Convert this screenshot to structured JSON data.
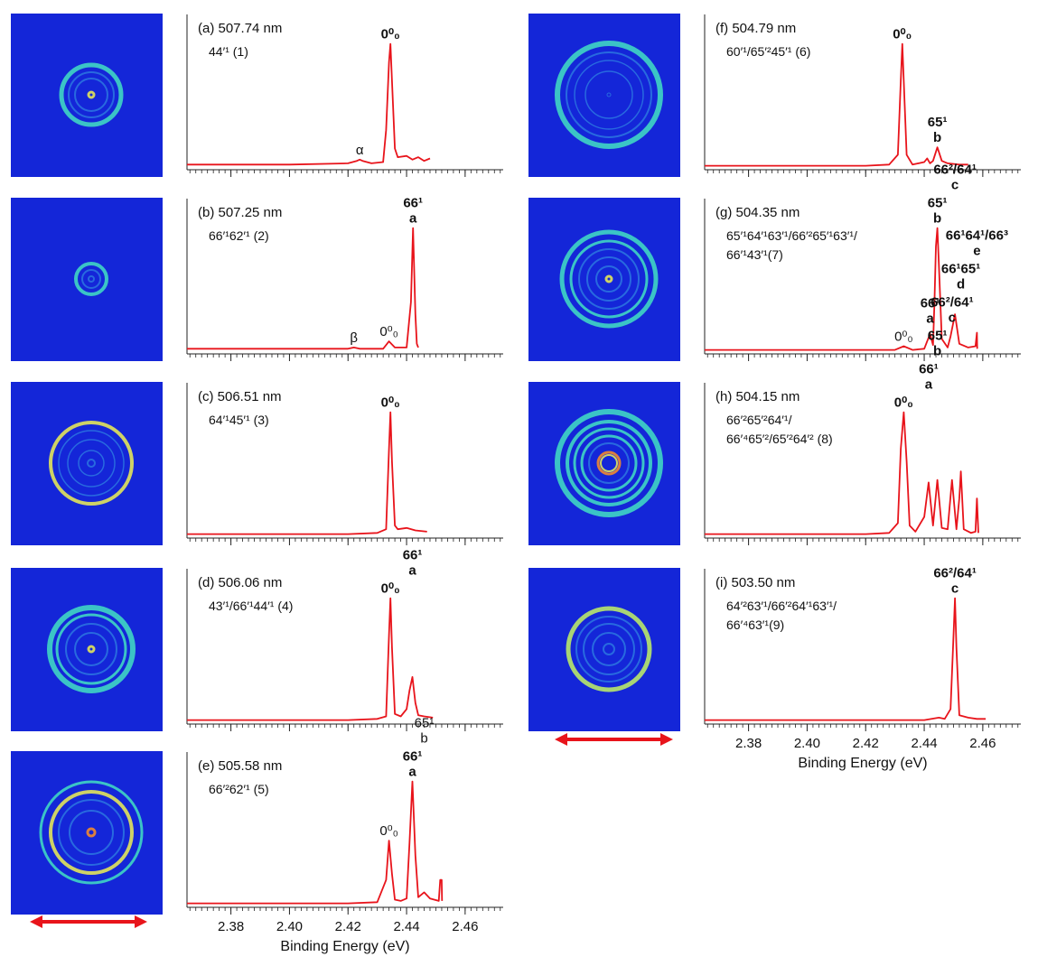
{
  "chart_data": [
    {
      "type": "line",
      "title": "(a) 507.74 nm",
      "assignment": [
        "44′¹ (1)"
      ],
      "color": "#e8141b",
      "xlim": [
        2.365,
        2.473
      ],
      "ylim": [
        0,
        110
      ],
      "xticks": [
        2.38,
        2.4,
        2.42,
        2.44,
        2.46
      ],
      "tick_labels": false,
      "x": [
        2.365,
        2.4,
        2.42,
        2.423,
        2.424,
        2.425,
        2.428,
        2.432,
        2.433,
        2.434,
        2.4345,
        2.435,
        2.436,
        2.437,
        2.44,
        2.442,
        2.444,
        2.446,
        2.448
      ],
      "values": [
        2,
        2,
        3,
        5,
        6,
        5,
        3,
        4,
        30,
        85,
        100,
        70,
        15,
        8,
        9,
        6,
        8,
        5,
        7
      ],
      "annotations": [
        {
          "x": 2.424,
          "label": "α",
          "bold": false
        },
        {
          "x": 2.4345,
          "label": "0⁰₀",
          "bold": true
        }
      ]
    },
    {
      "type": "line",
      "title": "(b) 507.25 nm",
      "assignment": [
        "66′¹62′¹ (2)"
      ],
      "color": "#e8141b",
      "xlim": [
        2.365,
        2.473
      ],
      "ylim": [
        0,
        110
      ],
      "xticks": [
        2.38,
        2.4,
        2.42,
        2.44,
        2.46
      ],
      "tick_labels": false,
      "x": [
        2.365,
        2.4,
        2.42,
        2.422,
        2.424,
        2.432,
        2.434,
        2.436,
        2.44,
        2.4415,
        2.4422,
        2.443,
        2.4435,
        2.444
      ],
      "values": [
        2,
        2,
        2,
        3,
        2,
        2,
        8,
        3,
        3,
        40,
        100,
        30,
        6,
        3
      ],
      "annotations": [
        {
          "x": 2.422,
          "label": "β",
          "bold": false
        },
        {
          "x": 2.434,
          "label": "0⁰₀",
          "bold": false
        },
        {
          "x": 2.4422,
          "label": "66¹",
          "letter": "a",
          "bold": true
        }
      ]
    },
    {
      "type": "line",
      "title": "(c) 506.51 nm",
      "assignment": [
        "64′¹45′¹ (3)"
      ],
      "color": "#e8141b",
      "xlim": [
        2.365,
        2.473
      ],
      "ylim": [
        0,
        110
      ],
      "xticks": [
        2.38,
        2.4,
        2.42,
        2.44,
        2.46
      ],
      "tick_labels": false,
      "x": [
        2.365,
        2.42,
        2.43,
        2.433,
        2.434,
        2.4345,
        2.435,
        2.436,
        2.437,
        2.44,
        2.443,
        2.447
      ],
      "values": [
        1,
        1,
        2,
        5,
        70,
        100,
        60,
        8,
        5,
        6,
        4,
        3
      ],
      "annotations": [
        {
          "x": 2.4345,
          "label": "0⁰₀",
          "bold": true
        }
      ]
    },
    {
      "type": "line",
      "title": "(d) 506.06 nm",
      "assignment": [
        "43′¹/66′¹44′¹ (4)"
      ],
      "color": "#e8141b",
      "xlim": [
        2.365,
        2.473
      ],
      "ylim": [
        0,
        110
      ],
      "xticks": [
        2.38,
        2.4,
        2.42,
        2.44,
        2.46
      ],
      "tick_labels": false,
      "x": [
        2.365,
        2.42,
        2.43,
        2.433,
        2.434,
        2.4345,
        2.435,
        2.436,
        2.438,
        2.44,
        2.441,
        2.442,
        2.443,
        2.444,
        2.446,
        2.449
      ],
      "values": [
        1,
        1,
        2,
        4,
        70,
        100,
        60,
        6,
        4,
        10,
        25,
        36,
        15,
        5,
        4,
        3
      ],
      "annotations": [
        {
          "x": 2.4345,
          "label": "0⁰₀",
          "bold": true
        },
        {
          "x": 2.442,
          "label": "66¹",
          "letter": "a",
          "bold": true
        }
      ]
    },
    {
      "type": "line",
      "title": "(e) 505.58 nm",
      "assignment": [
        "66′²62′¹ (5)"
      ],
      "color": "#e8141b",
      "xlim": [
        2.365,
        2.473
      ],
      "ylim": [
        0,
        110
      ],
      "xticks": [
        2.38,
        {
          "value": 2.4,
          "label": "2.40"
        },
        2.42,
        2.44,
        2.46
      ],
      "xlabel": "Binding Energy (eV)",
      "x": [
        2.365,
        2.42,
        2.43,
        2.433,
        2.434,
        2.435,
        2.436,
        2.438,
        2.44,
        2.441,
        2.442,
        2.443,
        2.444,
        2.445,
        2.446,
        2.448,
        2.451,
        2.4515,
        2.452,
        2.4521
      ],
      "values": [
        1,
        1,
        2,
        20,
        52,
        25,
        4,
        3,
        5,
        50,
        100,
        40,
        6,
        8,
        10,
        5,
        3,
        20,
        20,
        3
      ],
      "annotations": [
        {
          "x": 2.434,
          "label": "0⁰₀",
          "bold": false
        },
        {
          "x": 2.442,
          "label": "66¹",
          "letter": "a",
          "bold": true
        },
        {
          "x": 2.446,
          "label": "65¹",
          "letter": "b",
          "bold": false
        }
      ]
    },
    {
      "type": "line",
      "title": "(f) 504.79 nm",
      "assignment": [
        "60′¹/65′²45′¹ (6)"
      ],
      "color": "#e8141b",
      "xlim": [
        2.365,
        2.473
      ],
      "ylim": [
        0,
        110
      ],
      "xticks": [
        2.38,
        2.4,
        2.42,
        2.44,
        2.46
      ],
      "tick_labels": false,
      "x": [
        2.365,
        2.42,
        2.428,
        2.431,
        2.432,
        2.4325,
        2.433,
        2.434,
        2.436,
        2.44,
        2.441,
        2.442,
        2.443,
        2.4445,
        2.446,
        2.448,
        2.452,
        2.455
      ],
      "values": [
        1,
        1,
        2,
        10,
        70,
        100,
        70,
        10,
        2,
        4,
        7,
        3,
        5,
        16,
        5,
        3,
        2,
        2
      ],
      "annotations": [
        {
          "x": 2.4325,
          "label": "0⁰₀",
          "bold": true
        },
        {
          "x": 2.4445,
          "label": "65¹",
          "letter": "b",
          "bold": true
        }
      ]
    },
    {
      "type": "line",
      "title": "(g) 504.35 nm",
      "assignment": [
        "65′¹64′¹63′¹/66′²65′¹63′¹/",
        "66′¹43′¹(7)"
      ],
      "color": "#e8141b",
      "xlim": [
        2.365,
        2.473
      ],
      "ylim": [
        0,
        110
      ],
      "xticks": [
        2.38,
        2.4,
        2.42,
        2.44,
        2.46
      ],
      "tick_labels": false,
      "x": [
        2.365,
        2.43,
        2.433,
        2.436,
        2.44,
        2.441,
        2.442,
        2.443,
        2.4435,
        2.444,
        2.4445,
        2.445,
        2.446,
        2.448,
        2.449,
        2.4505,
        2.452,
        2.455,
        2.4575,
        2.458,
        2.4581
      ],
      "values": [
        1,
        1,
        4,
        1,
        2,
        8,
        14,
        5,
        40,
        85,
        100,
        70,
        10,
        3,
        12,
        30,
        6,
        3,
        4,
        15,
        2
      ],
      "annotations": [
        {
          "x": 2.433,
          "label": "0⁰₀",
          "bold": false
        },
        {
          "x": 2.442,
          "label": "66¹",
          "letter": "a",
          "bold": true
        },
        {
          "x": 2.4445,
          "label": "65¹",
          "letter": "b",
          "bold": true
        },
        {
          "x": 2.4505,
          "label": "66²/64¹",
          "letter": "c",
          "bold": true
        }
      ]
    },
    {
      "type": "line",
      "title": "(h) 504.15 nm",
      "assignment": [
        "66′²65′²64′¹/",
        "66′⁴65′²/65′²64′² (8)"
      ],
      "color": "#e8141b",
      "xlim": [
        2.365,
        2.473
      ],
      "ylim": [
        0,
        110
      ],
      "xticks": [
        2.38,
        2.4,
        2.42,
        2.44,
        2.46
      ],
      "tick_labels": false,
      "x": [
        2.365,
        2.42,
        2.428,
        2.431,
        2.432,
        2.433,
        2.434,
        2.435,
        2.437,
        2.44,
        2.4415,
        2.443,
        2.4445,
        2.446,
        2.448,
        2.4495,
        2.451,
        2.452,
        2.4525,
        2.4535,
        2.456,
        2.4575,
        2.458,
        2.4585
      ],
      "values": [
        1,
        1,
        2,
        10,
        70,
        100,
        60,
        8,
        3,
        15,
        43,
        8,
        45,
        6,
        5,
        45,
        5,
        30,
        52,
        5,
        2,
        3,
        30,
        2
      ],
      "annotations": [
        {
          "x": 2.433,
          "label": "0⁰₀",
          "bold": true
        },
        {
          "x": 2.4415,
          "label": "66¹",
          "letter": "a",
          "bold": true
        },
        {
          "x": 2.4445,
          "label": "65¹",
          "letter": "b",
          "bold": true
        },
        {
          "x": 2.4495,
          "label": "66²/64¹",
          "letter": "c",
          "bold": true
        },
        {
          "x": 2.4525,
          "label": "66¹65¹",
          "letter": "d",
          "bold": true
        },
        {
          "x": 2.458,
          "label": "66¹64¹/66³",
          "letter": "e",
          "bold": true
        }
      ]
    },
    {
      "type": "line",
      "title": "(i) 503.50 nm",
      "assignment": [
        "64′²63′¹/66′²64′¹63′¹/",
        "66′⁴63′¹(9)"
      ],
      "color": "#e8141b",
      "xlim": [
        2.365,
        2.473
      ],
      "ylim": [
        0,
        110
      ],
      "xticks": [
        2.38,
        {
          "value": 2.4,
          "label": "2.40"
        },
        2.42,
        2.44,
        2.46
      ],
      "xlabel": "Binding Energy (eV)",
      "x": [
        2.365,
        2.44,
        2.445,
        2.447,
        2.449,
        2.45,
        2.4505,
        2.451,
        2.452,
        2.455,
        2.458,
        2.461
      ],
      "values": [
        1,
        1,
        3,
        2,
        10,
        70,
        100,
        60,
        5,
        3,
        2,
        2
      ],
      "annotations": [
        {
          "x": 2.4505,
          "label": "66²/64¹",
          "letter": "c",
          "bold": true
        }
      ]
    }
  ]
}
